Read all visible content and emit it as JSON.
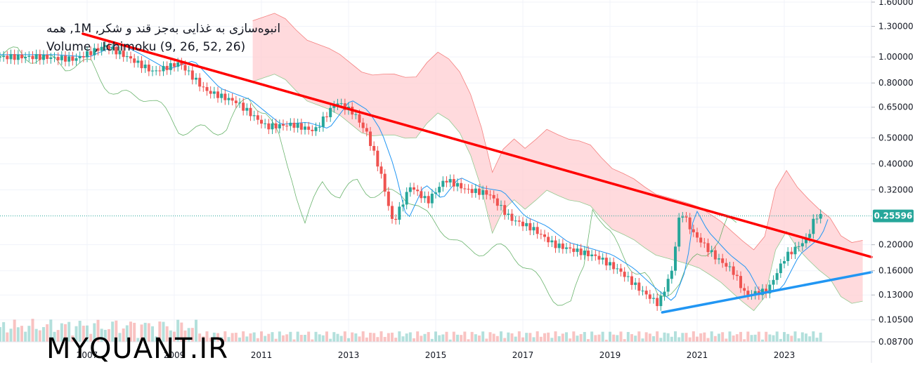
{
  "chart_data": {
    "type": "candlestick",
    "title": "انبوه‌سازی به غذایی به‌جز قند و شکر, 1M, همه",
    "indicators_label": "Volume , Ichimoku (9, 26, 52, 26)",
    "price_scale": "log",
    "y_ticks": [
      "1.60000",
      "1.30000",
      "1.00000",
      "0.80000",
      "0.65000",
      "0.50000",
      "0.40000",
      "0.32000",
      "0.20000",
      "0.16000",
      "0.13000",
      "0.10500",
      "0.08700"
    ],
    "x_ticks": [
      "2007",
      "2009",
      "2011",
      "2013",
      "2015",
      "2017",
      "2019",
      "2021",
      "2023"
    ],
    "last_price": "0.25596",
    "ylim": [
      0.087,
      1.6
    ],
    "price_path": [
      {
        "x": 2006.0,
        "y": 1.0
      },
      {
        "x": 2006.8,
        "y": 0.98
      },
      {
        "x": 2007.5,
        "y": 1.1
      },
      {
        "x": 2008.0,
        "y": 1.0
      },
      {
        "x": 2008.6,
        "y": 0.88
      },
      {
        "x": 2009.2,
        "y": 0.95
      },
      {
        "x": 2009.8,
        "y": 0.75
      },
      {
        "x": 2010.5,
        "y": 0.68
      },
      {
        "x": 2011.2,
        "y": 0.55
      },
      {
        "x": 2011.8,
        "y": 0.56
      },
      {
        "x": 2012.3,
        "y": 0.53
      },
      {
        "x": 2012.8,
        "y": 0.68
      },
      {
        "x": 2013.2,
        "y": 0.62
      },
      {
        "x": 2013.5,
        "y": 0.52
      },
      {
        "x": 2013.8,
        "y": 0.38
      },
      {
        "x": 2014.1,
        "y": 0.24
      },
      {
        "x": 2014.5,
        "y": 0.33
      },
      {
        "x": 2014.9,
        "y": 0.29
      },
      {
        "x": 2015.3,
        "y": 0.35
      },
      {
        "x": 2015.8,
        "y": 0.32
      },
      {
        "x": 2016.3,
        "y": 0.31
      },
      {
        "x": 2016.8,
        "y": 0.25
      },
      {
        "x": 2017.3,
        "y": 0.23
      },
      {
        "x": 2017.8,
        "y": 0.2
      },
      {
        "x": 2018.3,
        "y": 0.19
      },
      {
        "x": 2018.8,
        "y": 0.18
      },
      {
        "x": 2019.3,
        "y": 0.16
      },
      {
        "x": 2019.8,
        "y": 0.135
      },
      {
        "x": 2020.2,
        "y": 0.12
      },
      {
        "x": 2020.5,
        "y": 0.16
      },
      {
        "x": 2020.7,
        "y": 0.27
      },
      {
        "x": 2021.0,
        "y": 0.22
      },
      {
        "x": 2021.5,
        "y": 0.18
      },
      {
        "x": 2021.9,
        "y": 0.16
      },
      {
        "x": 2022.2,
        "y": 0.13
      },
      {
        "x": 2022.7,
        "y": 0.135
      },
      {
        "x": 2023.1,
        "y": 0.18
      },
      {
        "x": 2023.6,
        "y": 0.21
      },
      {
        "x": 2023.8,
        "y": 0.256
      }
    ],
    "trendlines": [
      {
        "name": "resistance",
        "color": "#ff0000",
        "from": {
          "x": 2006.9,
          "y": 1.22
        },
        "to": {
          "x": 2025.0,
          "y": 0.18
        }
      },
      {
        "name": "support",
        "color": "#2196f3",
        "from": {
          "x": 2020.2,
          "y": 0.112
        },
        "to": {
          "x": 2025.0,
          "y": 0.158
        }
      }
    ],
    "colors": {
      "up": "#26a69a",
      "down": "#ef5350",
      "price_line": "#2196f3",
      "cloud": "#ffcdd2",
      "cloud_green": "#c8e6c9"
    }
  },
  "watermark": "MYQUANT.IR"
}
